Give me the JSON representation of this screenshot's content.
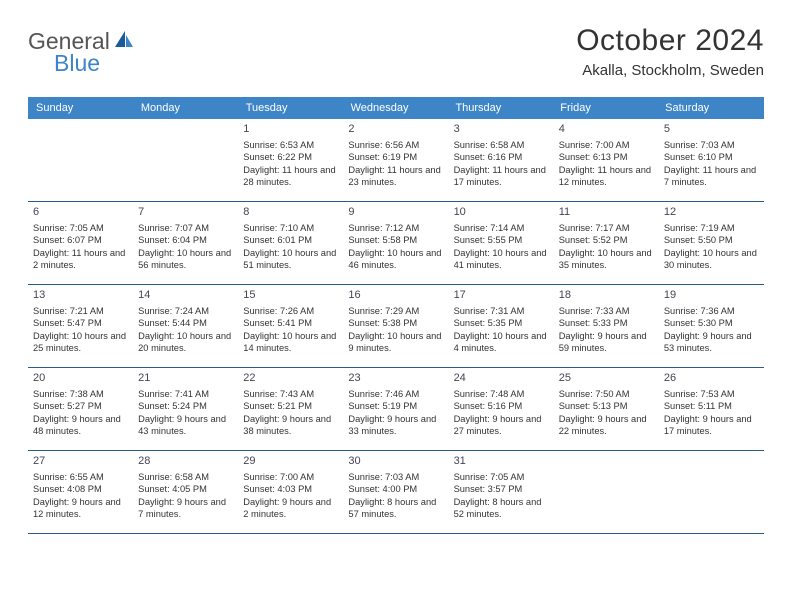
{
  "brand": {
    "text1": "General",
    "text2": "Blue"
  },
  "title": "October 2024",
  "location": "Akalla, Stockholm, Sweden",
  "colors": {
    "header_bg": "#3d85c6",
    "divider": "#2b5a8a",
    "text": "#333333",
    "brand_blue": "#3d85c6"
  },
  "weekdays": [
    "Sunday",
    "Monday",
    "Tuesday",
    "Wednesday",
    "Thursday",
    "Friday",
    "Saturday"
  ],
  "grid": [
    [
      null,
      null,
      {
        "n": "1",
        "sr": "6:53 AM",
        "ss": "6:22 PM",
        "dl": "11 hours and 28 minutes."
      },
      {
        "n": "2",
        "sr": "6:56 AM",
        "ss": "6:19 PM",
        "dl": "11 hours and 23 minutes."
      },
      {
        "n": "3",
        "sr": "6:58 AM",
        "ss": "6:16 PM",
        "dl": "11 hours and 17 minutes."
      },
      {
        "n": "4",
        "sr": "7:00 AM",
        "ss": "6:13 PM",
        "dl": "11 hours and 12 minutes."
      },
      {
        "n": "5",
        "sr": "7:03 AM",
        "ss": "6:10 PM",
        "dl": "11 hours and 7 minutes."
      }
    ],
    [
      {
        "n": "6",
        "sr": "7:05 AM",
        "ss": "6:07 PM",
        "dl": "11 hours and 2 minutes."
      },
      {
        "n": "7",
        "sr": "7:07 AM",
        "ss": "6:04 PM",
        "dl": "10 hours and 56 minutes."
      },
      {
        "n": "8",
        "sr": "7:10 AM",
        "ss": "6:01 PM",
        "dl": "10 hours and 51 minutes."
      },
      {
        "n": "9",
        "sr": "7:12 AM",
        "ss": "5:58 PM",
        "dl": "10 hours and 46 minutes."
      },
      {
        "n": "10",
        "sr": "7:14 AM",
        "ss": "5:55 PM",
        "dl": "10 hours and 41 minutes."
      },
      {
        "n": "11",
        "sr": "7:17 AM",
        "ss": "5:52 PM",
        "dl": "10 hours and 35 minutes."
      },
      {
        "n": "12",
        "sr": "7:19 AM",
        "ss": "5:50 PM",
        "dl": "10 hours and 30 minutes."
      }
    ],
    [
      {
        "n": "13",
        "sr": "7:21 AM",
        "ss": "5:47 PM",
        "dl": "10 hours and 25 minutes."
      },
      {
        "n": "14",
        "sr": "7:24 AM",
        "ss": "5:44 PM",
        "dl": "10 hours and 20 minutes."
      },
      {
        "n": "15",
        "sr": "7:26 AM",
        "ss": "5:41 PM",
        "dl": "10 hours and 14 minutes."
      },
      {
        "n": "16",
        "sr": "7:29 AM",
        "ss": "5:38 PM",
        "dl": "10 hours and 9 minutes."
      },
      {
        "n": "17",
        "sr": "7:31 AM",
        "ss": "5:35 PM",
        "dl": "10 hours and 4 minutes."
      },
      {
        "n": "18",
        "sr": "7:33 AM",
        "ss": "5:33 PM",
        "dl": "9 hours and 59 minutes."
      },
      {
        "n": "19",
        "sr": "7:36 AM",
        "ss": "5:30 PM",
        "dl": "9 hours and 53 minutes."
      }
    ],
    [
      {
        "n": "20",
        "sr": "7:38 AM",
        "ss": "5:27 PM",
        "dl": "9 hours and 48 minutes."
      },
      {
        "n": "21",
        "sr": "7:41 AM",
        "ss": "5:24 PM",
        "dl": "9 hours and 43 minutes."
      },
      {
        "n": "22",
        "sr": "7:43 AM",
        "ss": "5:21 PM",
        "dl": "9 hours and 38 minutes."
      },
      {
        "n": "23",
        "sr": "7:46 AM",
        "ss": "5:19 PM",
        "dl": "9 hours and 33 minutes."
      },
      {
        "n": "24",
        "sr": "7:48 AM",
        "ss": "5:16 PM",
        "dl": "9 hours and 27 minutes."
      },
      {
        "n": "25",
        "sr": "7:50 AM",
        "ss": "5:13 PM",
        "dl": "9 hours and 22 minutes."
      },
      {
        "n": "26",
        "sr": "7:53 AM",
        "ss": "5:11 PM",
        "dl": "9 hours and 17 minutes."
      }
    ],
    [
      {
        "n": "27",
        "sr": "6:55 AM",
        "ss": "4:08 PM",
        "dl": "9 hours and 12 minutes."
      },
      {
        "n": "28",
        "sr": "6:58 AM",
        "ss": "4:05 PM",
        "dl": "9 hours and 7 minutes."
      },
      {
        "n": "29",
        "sr": "7:00 AM",
        "ss": "4:03 PM",
        "dl": "9 hours and 2 minutes."
      },
      {
        "n": "30",
        "sr": "7:03 AM",
        "ss": "4:00 PM",
        "dl": "8 hours and 57 minutes."
      },
      {
        "n": "31",
        "sr": "7:05 AM",
        "ss": "3:57 PM",
        "dl": "8 hours and 52 minutes."
      },
      null,
      null
    ]
  ],
  "labels": {
    "sunrise": "Sunrise:",
    "sunset": "Sunset:",
    "daylight": "Daylight:"
  }
}
